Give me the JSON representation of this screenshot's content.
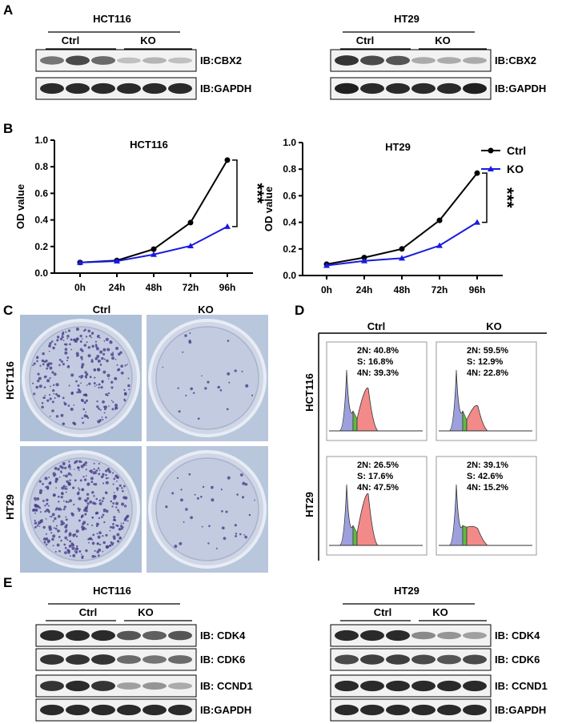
{
  "panels": {
    "a": "A",
    "b": "B",
    "c": "C",
    "d": "D",
    "e": "E"
  },
  "groups": {
    "ctrl": "Ctrl",
    "ko": "KO"
  },
  "cell_lines": {
    "hct116": "HCT116",
    "ht29": "HT29"
  },
  "panel_a": {
    "blots": [
      {
        "cell_line": "HCT116",
        "rows": [
          {
            "label": "IB:CBX2",
            "band_intensity": [
              0.55,
              0.75,
              0.6,
              0.2,
              0.25,
              0.2
            ]
          },
          {
            "label": "IB:GAPDH",
            "band_intensity": [
              0.9,
              0.9,
              0.9,
              0.9,
              0.9,
              0.9
            ]
          }
        ]
      },
      {
        "cell_line": "HT29",
        "rows": [
          {
            "label": "IB:CBX2",
            "band_intensity": [
              0.85,
              0.75,
              0.7,
              0.3,
              0.3,
              0.3
            ]
          },
          {
            "label": "IB:GAPDH",
            "band_intensity": [
              0.95,
              0.9,
              0.9,
              0.9,
              0.9,
              0.95
            ]
          }
        ]
      }
    ]
  },
  "chart_data": [
    {
      "type": "line",
      "title": "HCT116",
      "ylabel": "OD value",
      "categories": [
        "0h",
        "24h",
        "48h",
        "72h",
        "96h"
      ],
      "ylim": [
        0,
        1.0
      ],
      "yticks": [
        "0.0",
        "0.2",
        "0.4",
        "0.6",
        "0.8",
        "1.0"
      ],
      "significance": "***",
      "series": [
        {
          "name": "Ctrl",
          "color": "#000000",
          "marker": "circle",
          "values": [
            0.08,
            0.095,
            0.18,
            0.38,
            0.85
          ]
        },
        {
          "name": "KO",
          "color": "#1a1adf",
          "marker": "triangle",
          "values": [
            0.08,
            0.09,
            0.14,
            0.205,
            0.35
          ]
        }
      ]
    },
    {
      "type": "line",
      "title": "HT29",
      "ylabel": "OD value",
      "categories": [
        "0h",
        "24h",
        "48h",
        "72h",
        "96h"
      ],
      "ylim": [
        0,
        1.0
      ],
      "yticks": [
        "0.0",
        "0.2",
        "0.4",
        "0.6",
        "0.8",
        "1.0"
      ],
      "significance": "***",
      "legend": "top-right",
      "series": [
        {
          "name": "Ctrl",
          "color": "#000000",
          "marker": "circle",
          "values": [
            0.085,
            0.135,
            0.2,
            0.415,
            0.77
          ]
        },
        {
          "name": "KO",
          "color": "#1a1adf",
          "marker": "triangle",
          "values": [
            0.075,
            0.11,
            0.13,
            0.225,
            0.4
          ]
        }
      ]
    }
  ],
  "panel_d": {
    "histograms": [
      {
        "cell_line": "HCT116",
        "group": "Ctrl",
        "lines": [
          "2N: 40.8%",
          "S: 16.8%",
          "4N: 39.3%"
        ],
        "g1": 40.8,
        "s": 16.8,
        "g2": 39.3
      },
      {
        "cell_line": "HCT116",
        "group": "KO",
        "lines": [
          "2N: 59.5%",
          "S: 12.9%",
          "4N: 22.8%"
        ],
        "g1": 59.5,
        "s": 12.9,
        "g2": 22.8
      },
      {
        "cell_line": "HT29",
        "group": "Ctrl",
        "lines": [
          "2N: 26.5%",
          "S: 17.6%",
          "4N: 47.5%"
        ],
        "g1": 26.5,
        "s": 17.6,
        "g2": 47.5
      },
      {
        "cell_line": "HT29",
        "group": "KO",
        "lines": [
          "2N: 39.1%",
          "S: 42.6%",
          "4N: 15.2%"
        ],
        "g1": 39.1,
        "s": 42.6,
        "g2": 15.2
      }
    ],
    "colors": {
      "g1": "#9da0dd",
      "s": "#5dbb3f",
      "g2": "#f28a8a"
    }
  },
  "panel_e": {
    "blots": [
      {
        "cell_line": "HCT116",
        "rows": [
          {
            "label": "IB: CDK4",
            "band_intensity": [
              0.9,
              0.9,
              0.9,
              0.7,
              0.65,
              0.7
            ]
          },
          {
            "label": "IB: CDK6",
            "band_intensity": [
              0.85,
              0.85,
              0.85,
              0.6,
              0.55,
              0.6
            ]
          },
          {
            "label": "IB: CCND1",
            "band_intensity": [
              0.85,
              0.9,
              0.85,
              0.35,
              0.4,
              0.3
            ]
          },
          {
            "label": "IB:GAPDH",
            "band_intensity": [
              0.9,
              0.9,
              0.9,
              0.9,
              0.9,
              0.9
            ]
          }
        ]
      },
      {
        "cell_line": "HT29",
        "rows": [
          {
            "label": "IB: CDK4",
            "band_intensity": [
              0.9,
              0.9,
              0.9,
              0.45,
              0.4,
              0.35
            ]
          },
          {
            "label": "IB: CDK6",
            "band_intensity": [
              0.75,
              0.8,
              0.8,
              0.75,
              0.7,
              0.75
            ]
          },
          {
            "label": "IB: CCND1",
            "band_intensity": [
              0.9,
              0.9,
              0.9,
              0.9,
              0.9,
              0.9
            ]
          },
          {
            "label": "IB:GAPDH",
            "band_intensity": [
              0.9,
              0.9,
              0.9,
              0.9,
              0.9,
              0.9
            ]
          }
        ]
      }
    ]
  }
}
